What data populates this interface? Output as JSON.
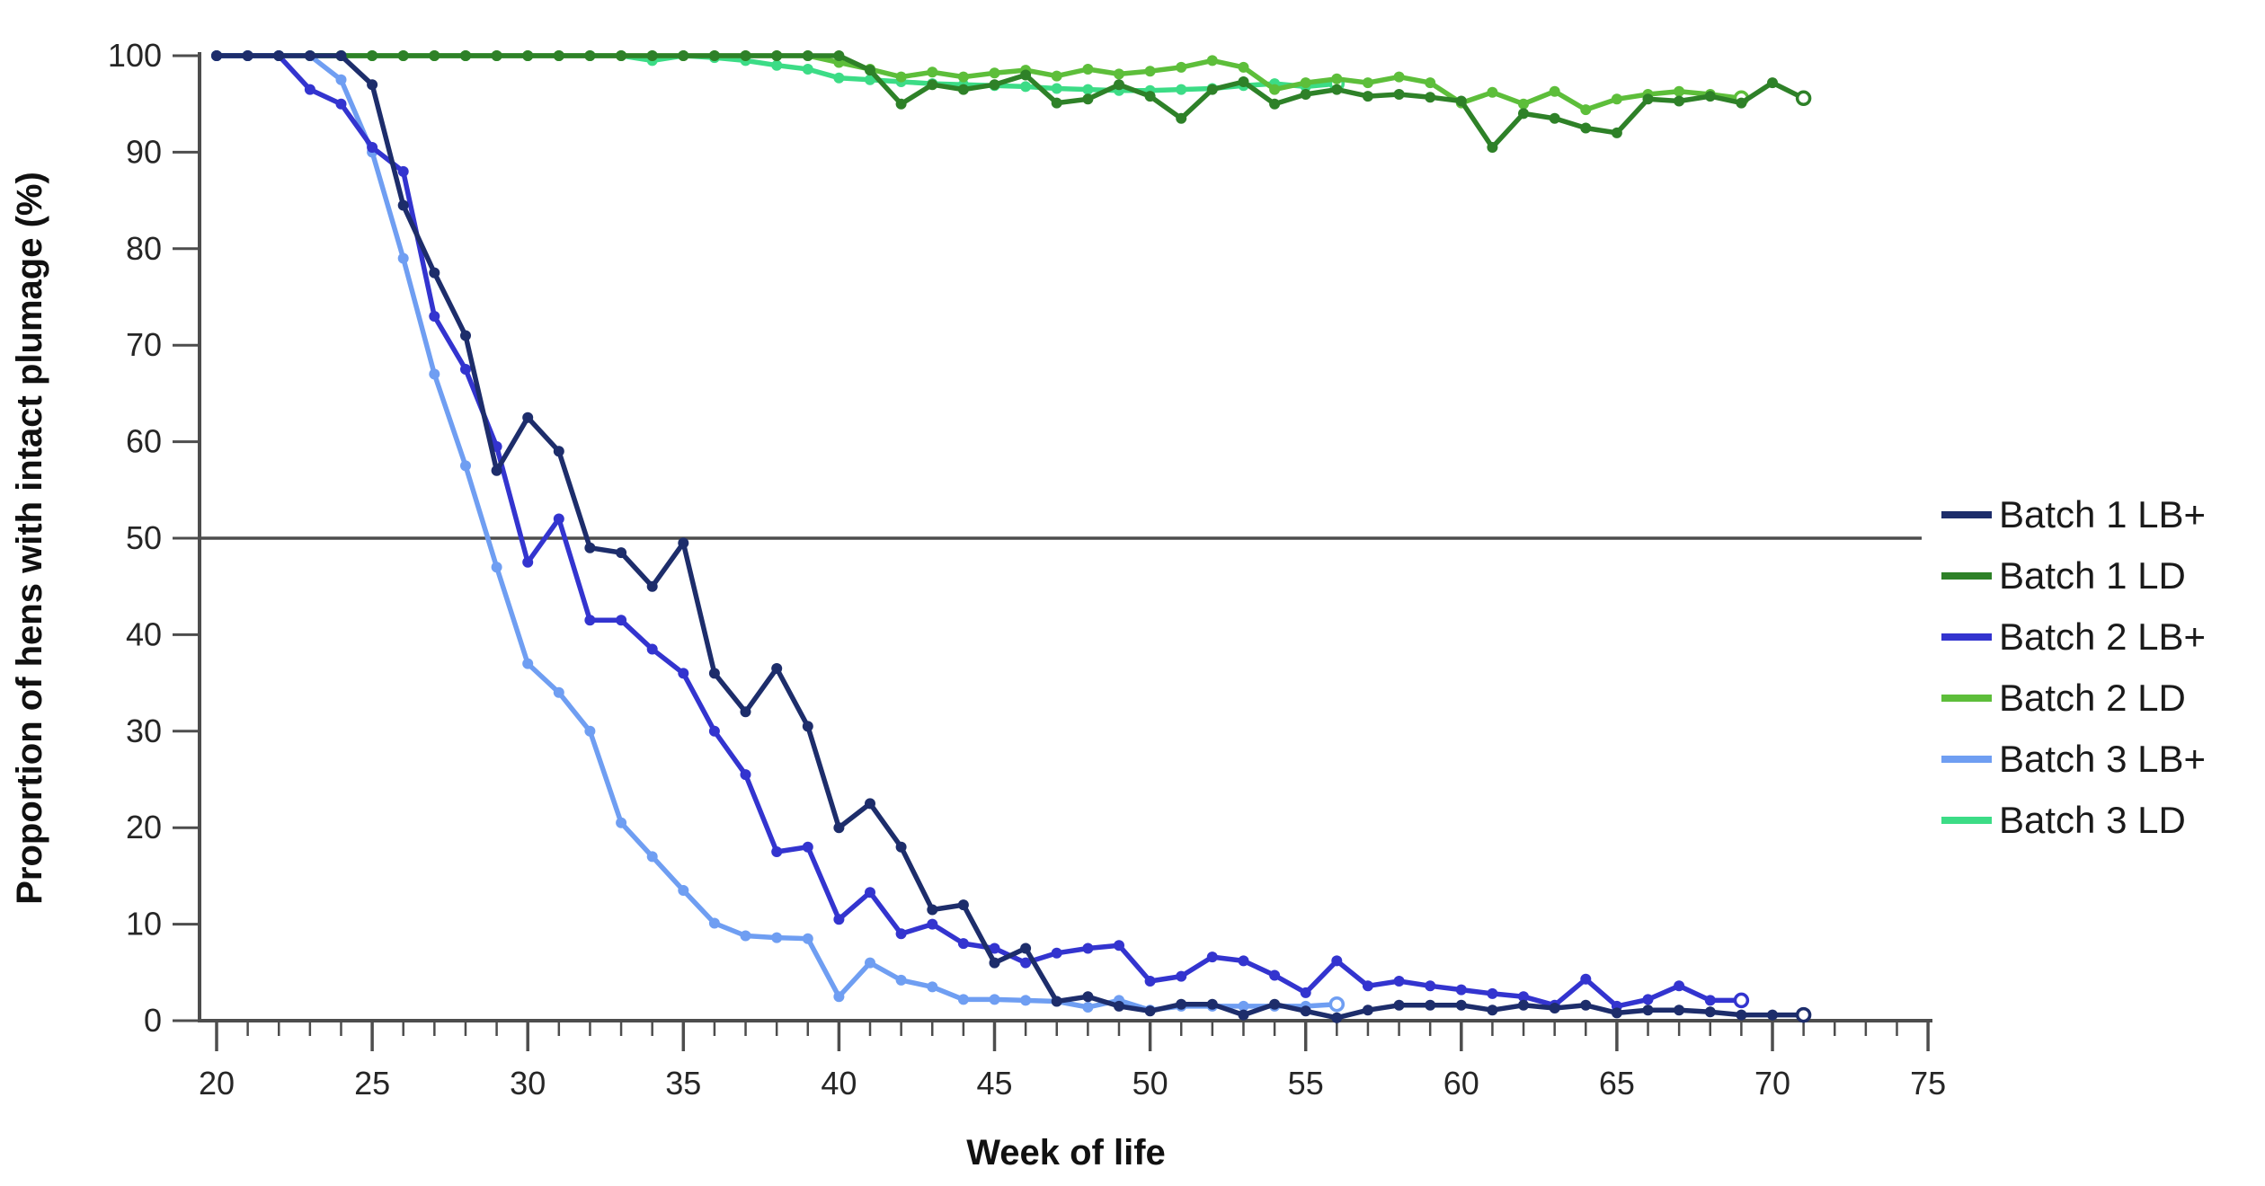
{
  "figure": {
    "background": "#ffffff",
    "axis_color": "#4d4d4d",
    "tick_label_color": "#262626",
    "legend_text_color": "#1a1a1a"
  },
  "chart_data": {
    "type": "line",
    "title": "",
    "xlabel": "Week of life",
    "ylabel": "Proportion of hens with intact plumage (%)",
    "xlim": [
      20,
      75
    ],
    "ylim": [
      0,
      100
    ],
    "grid": false,
    "legend_position": "right-outside",
    "x_major_ticks": [
      20,
      25,
      30,
      35,
      40,
      45,
      50,
      55,
      60,
      65,
      70,
      75
    ],
    "x_minor_tick_every": 1,
    "y_ticks": [
      0,
      10,
      20,
      30,
      40,
      50,
      60,
      70,
      80,
      90,
      100
    ],
    "reference_line": {
      "y": 50,
      "color": "#4d4d4d"
    },
    "series": [
      {
        "name": "Batch 1 LB+",
        "slug": "batch-1-lb-plus",
        "color": "#1d2d6b",
        "end_marker": "open",
        "points": [
          [
            20,
            100
          ],
          [
            21,
            100
          ],
          [
            22,
            100
          ],
          [
            23,
            100
          ],
          [
            24,
            100
          ],
          [
            25,
            97
          ],
          [
            26,
            84.5
          ],
          [
            27,
            77.5
          ],
          [
            28,
            71
          ],
          [
            29,
            57
          ],
          [
            30,
            62.5
          ],
          [
            31,
            59
          ],
          [
            32,
            49
          ],
          [
            33,
            48.5
          ],
          [
            34,
            45
          ],
          [
            35,
            49.5
          ],
          [
            36,
            36
          ],
          [
            37,
            32
          ],
          [
            38,
            36.5
          ],
          [
            39,
            30.5
          ],
          [
            40,
            20
          ],
          [
            41,
            22.5
          ],
          [
            42,
            18
          ],
          [
            43,
            11.5
          ],
          [
            44,
            12
          ],
          [
            45,
            6
          ],
          [
            46,
            7.5
          ],
          [
            47,
            2
          ],
          [
            48,
            2.5
          ],
          [
            49,
            1.5
          ],
          [
            50,
            1
          ],
          [
            51,
            1.7
          ],
          [
            52,
            1.7
          ],
          [
            53,
            0.6
          ],
          [
            54,
            1.7
          ],
          [
            55,
            1
          ],
          [
            56,
            0.3
          ],
          [
            57,
            1.1
          ],
          [
            58,
            1.6
          ],
          [
            59,
            1.6
          ],
          [
            60,
            1.6
          ],
          [
            61,
            1.1
          ],
          [
            62,
            1.6
          ],
          [
            63,
            1.3
          ],
          [
            64,
            1.6
          ],
          [
            65,
            0.8
          ],
          [
            66,
            1.1
          ],
          [
            67,
            1.1
          ],
          [
            68,
            0.9
          ],
          [
            69,
            0.6
          ],
          [
            70,
            0.6
          ],
          [
            71,
            0.6
          ]
        ]
      },
      {
        "name": "Batch 1 LD",
        "slug": "batch-1-ld",
        "color": "#2e8128",
        "end_marker": "open",
        "points": [
          [
            20,
            100
          ],
          [
            21,
            100
          ],
          [
            22,
            100
          ],
          [
            23,
            100
          ],
          [
            24,
            100
          ],
          [
            25,
            100
          ],
          [
            26,
            100
          ],
          [
            27,
            100
          ],
          [
            28,
            100
          ],
          [
            29,
            100
          ],
          [
            30,
            100
          ],
          [
            31,
            100
          ],
          [
            32,
            100
          ],
          [
            33,
            100
          ],
          [
            34,
            100
          ],
          [
            35,
            100
          ],
          [
            36,
            100
          ],
          [
            37,
            100
          ],
          [
            38,
            100
          ],
          [
            39,
            100
          ],
          [
            40,
            100
          ],
          [
            41,
            98.5
          ],
          [
            42,
            95
          ],
          [
            43,
            97
          ],
          [
            44,
            96.5
          ],
          [
            45,
            97
          ],
          [
            46,
            98
          ],
          [
            47,
            95.1
          ],
          [
            48,
            95.5
          ],
          [
            49,
            97
          ],
          [
            50,
            95.8
          ],
          [
            51,
            93.5
          ],
          [
            52,
            96.5
          ],
          [
            53,
            97.3
          ],
          [
            54,
            95
          ],
          [
            55,
            96
          ],
          [
            56,
            96.5
          ],
          [
            57,
            95.8
          ],
          [
            58,
            96
          ],
          [
            59,
            95.7
          ],
          [
            60,
            95.3
          ],
          [
            61,
            90.5
          ],
          [
            62,
            94
          ],
          [
            63,
            93.5
          ],
          [
            64,
            92.5
          ],
          [
            65,
            92
          ],
          [
            66,
            95.5
          ],
          [
            67,
            95.3
          ],
          [
            68,
            95.8
          ],
          [
            69,
            95.1
          ],
          [
            70,
            97.2
          ],
          [
            71,
            95.6
          ]
        ]
      },
      {
        "name": "Batch 2 LB+",
        "slug": "batch-2-lb-plus",
        "color": "#3334cf",
        "end_marker": "open",
        "points": [
          [
            20,
            100
          ],
          [
            21,
            100
          ],
          [
            22,
            100
          ],
          [
            23,
            96.5
          ],
          [
            24,
            95
          ],
          [
            25,
            90.5
          ],
          [
            26,
            88
          ],
          [
            27,
            73
          ],
          [
            28,
            67.5
          ],
          [
            29,
            59.5
          ],
          [
            30,
            47.5
          ],
          [
            31,
            52
          ],
          [
            32,
            41.5
          ],
          [
            33,
            41.5
          ],
          [
            34,
            38.5
          ],
          [
            35,
            36
          ],
          [
            36,
            30
          ],
          [
            37,
            25.5
          ],
          [
            38,
            17.5
          ],
          [
            39,
            18
          ],
          [
            40,
            10.5
          ],
          [
            41,
            13.3
          ],
          [
            42,
            9
          ],
          [
            43,
            10
          ],
          [
            44,
            8
          ],
          [
            45,
            7.5
          ],
          [
            46,
            6
          ],
          [
            47,
            7
          ],
          [
            48,
            7.5
          ],
          [
            49,
            7.8
          ],
          [
            50,
            4.1
          ],
          [
            51,
            4.6
          ],
          [
            52,
            6.6
          ],
          [
            53,
            6.2
          ],
          [
            54,
            4.7
          ],
          [
            55,
            2.9
          ],
          [
            56,
            6.2
          ],
          [
            57,
            3.6
          ],
          [
            58,
            4.1
          ],
          [
            59,
            3.6
          ],
          [
            60,
            3.2
          ],
          [
            61,
            2.8
          ],
          [
            62,
            2.5
          ],
          [
            63,
            1.6
          ],
          [
            64,
            4.3
          ],
          [
            65,
            1.5
          ],
          [
            66,
            2.2
          ],
          [
            67,
            3.6
          ],
          [
            68,
            2.1
          ],
          [
            69,
            2.1
          ]
        ]
      },
      {
        "name": "Batch 2 LD",
        "slug": "batch-2-ld",
        "color": "#5dbe3a",
        "end_marker": "open",
        "points": [
          [
            20,
            100
          ],
          [
            21,
            100
          ],
          [
            22,
            100
          ],
          [
            23,
            100
          ],
          [
            24,
            100
          ],
          [
            25,
            100
          ],
          [
            26,
            100
          ],
          [
            27,
            100
          ],
          [
            28,
            100
          ],
          [
            29,
            100
          ],
          [
            30,
            100
          ],
          [
            31,
            100
          ],
          [
            32,
            100
          ],
          [
            33,
            100
          ],
          [
            34,
            100
          ],
          [
            35,
            100
          ],
          [
            36,
            100
          ],
          [
            37,
            100
          ],
          [
            38,
            100
          ],
          [
            39,
            100
          ],
          [
            40,
            99.3
          ],
          [
            41,
            98.6
          ],
          [
            42,
            97.8
          ],
          [
            43,
            98.3
          ],
          [
            44,
            97.8
          ],
          [
            45,
            98.2
          ],
          [
            46,
            98.5
          ],
          [
            47,
            97.9
          ],
          [
            48,
            98.6
          ],
          [
            49,
            98.1
          ],
          [
            50,
            98.4
          ],
          [
            51,
            98.8
          ],
          [
            52,
            99.5
          ],
          [
            53,
            98.8
          ],
          [
            54,
            96.5
          ],
          [
            55,
            97.2
          ],
          [
            56,
            97.6
          ],
          [
            57,
            97.2
          ],
          [
            58,
            97.8
          ],
          [
            59,
            97.2
          ],
          [
            60,
            95.1
          ],
          [
            61,
            96.2
          ],
          [
            62,
            95
          ],
          [
            63,
            96.3
          ],
          [
            64,
            94.4
          ],
          [
            65,
            95.5
          ],
          [
            66,
            96
          ],
          [
            67,
            96.3
          ],
          [
            68,
            96
          ],
          [
            69,
            95.6
          ]
        ]
      },
      {
        "name": "Batch 3 LB+",
        "slug": "batch-3-lb-plus",
        "color": "#6f9ef2",
        "end_marker": "open",
        "points": [
          [
            20,
            100
          ],
          [
            21,
            100
          ],
          [
            22,
            100
          ],
          [
            23,
            100
          ],
          [
            24,
            97.5
          ],
          [
            25,
            90
          ],
          [
            26,
            79
          ],
          [
            27,
            67
          ],
          [
            28,
            57.5
          ],
          [
            29,
            47
          ],
          [
            30,
            37
          ],
          [
            31,
            34
          ],
          [
            32,
            30
          ],
          [
            33,
            20.5
          ],
          [
            34,
            17
          ],
          [
            35,
            13.5
          ],
          [
            36,
            10.1
          ],
          [
            37,
            8.8
          ],
          [
            38,
            8.6
          ],
          [
            39,
            8.5
          ],
          [
            40,
            2.5
          ],
          [
            41,
            6
          ],
          [
            42,
            4.2
          ],
          [
            43,
            3.5
          ],
          [
            44,
            2.2
          ],
          [
            45,
            2.2
          ],
          [
            46,
            2.1
          ],
          [
            47,
            2
          ],
          [
            48,
            1.4
          ],
          [
            49,
            2.1
          ],
          [
            50,
            1.1
          ],
          [
            51,
            1.5
          ],
          [
            52,
            1.5
          ],
          [
            53,
            1.5
          ],
          [
            54,
            1.5
          ],
          [
            55,
            1.5
          ],
          [
            56,
            1.7
          ]
        ]
      },
      {
        "name": "Batch 3 LD",
        "slug": "batch-3-ld",
        "color": "#3cdc86",
        "end_marker": "open",
        "points": [
          [
            20,
            100
          ],
          [
            21,
            100
          ],
          [
            22,
            100
          ],
          [
            23,
            100
          ],
          [
            24,
            100
          ],
          [
            25,
            100
          ],
          [
            26,
            100
          ],
          [
            27,
            100
          ],
          [
            28,
            100
          ],
          [
            29,
            100
          ],
          [
            30,
            100
          ],
          [
            31,
            100
          ],
          [
            32,
            100
          ],
          [
            33,
            100
          ],
          [
            34,
            99.5
          ],
          [
            35,
            100
          ],
          [
            36,
            99.8
          ],
          [
            37,
            99.5
          ],
          [
            38,
            99
          ],
          [
            39,
            98.6
          ],
          [
            40,
            97.7
          ],
          [
            41,
            97.5
          ],
          [
            42,
            97.3
          ],
          [
            43,
            97.1
          ],
          [
            44,
            97
          ],
          [
            45,
            96.9
          ],
          [
            46,
            96.8
          ],
          [
            47,
            96.6
          ],
          [
            48,
            96.5
          ],
          [
            49,
            96.4
          ],
          [
            50,
            96.4
          ],
          [
            51,
            96.5
          ],
          [
            52,
            96.6
          ],
          [
            53,
            96.9
          ],
          [
            54,
            97.1
          ],
          [
            55,
            96.8
          ],
          [
            56,
            97.1
          ]
        ]
      }
    ]
  },
  "legend": {
    "entries": [
      "Batch 1 LB+",
      "Batch 1 LD",
      "Batch 2 LB+",
      "Batch 2 LD",
      "Batch 3 LB+",
      "Batch 3 LD"
    ]
  }
}
